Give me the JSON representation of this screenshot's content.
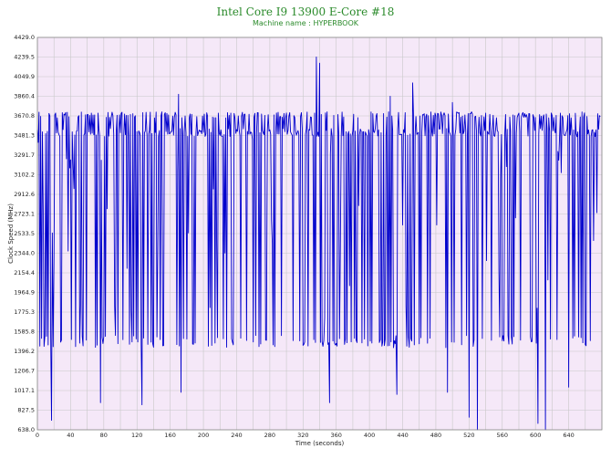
{
  "chart_data": {
    "type": "line",
    "title": "Intel Core I9 13900 E-Core #18",
    "subtitle": "Machine name : HYPERBOOK",
    "xlabel": "Time (seconds)",
    "ylabel": "Clock Speed (MHz)",
    "xlim": [
      0,
      680
    ],
    "ylim": [
      638.0,
      4429.0
    ],
    "x_ticks": [
      0,
      40,
      80,
      120,
      160,
      200,
      240,
      280,
      320,
      360,
      400,
      440,
      480,
      520,
      560,
      600,
      640
    ],
    "y_ticks": [
      638.0,
      827.5,
      1017.1,
      1206.7,
      1396.2,
      1585.8,
      1775.3,
      1964.9,
      2154.4,
      2344.0,
      2533.5,
      2723.1,
      2912.6,
      3102.2,
      3291.7,
      3481.3,
      3670.8,
      3860.4,
      4049.9,
      4239.5,
      4429.0
    ],
    "grid": true,
    "plot_background": "#f5e8f8",
    "grid_color": "#c8c8c8",
    "line_color": "#0000cc",
    "title_color": "#2a8a2a",
    "series": [
      {
        "values_mhz": {
          "baseline": 3510,
          "upper_band": 3680,
          "typical_drop": 1490,
          "drop_spikes": [
            {
              "t": 17,
              "v": 730
            },
            {
              "t": 76,
              "v": 900
            },
            {
              "t": 126,
              "v": 880
            },
            {
              "t": 173,
              "v": 1000
            },
            {
              "t": 340,
              "v": 820
            },
            {
              "t": 352,
              "v": 900
            },
            {
              "t": 433,
              "v": 980
            },
            {
              "t": 494,
              "v": 1000
            },
            {
              "t": 520,
              "v": 760
            },
            {
              "t": 530,
              "v": 638
            },
            {
              "t": 603,
              "v": 700
            },
            {
              "t": 612,
              "v": 638
            },
            {
              "t": 640,
              "v": 1050
            }
          ],
          "high_spikes": [
            {
              "t": 170,
              "v": 3880
            },
            {
              "t": 336,
              "v": 4240
            },
            {
              "t": 340,
              "v": 4180
            },
            {
              "t": 452,
              "v": 3990
            },
            {
              "t": 425,
              "v": 3860
            },
            {
              "t": 500,
              "v": 3800
            }
          ]
        }
      }
    ]
  }
}
